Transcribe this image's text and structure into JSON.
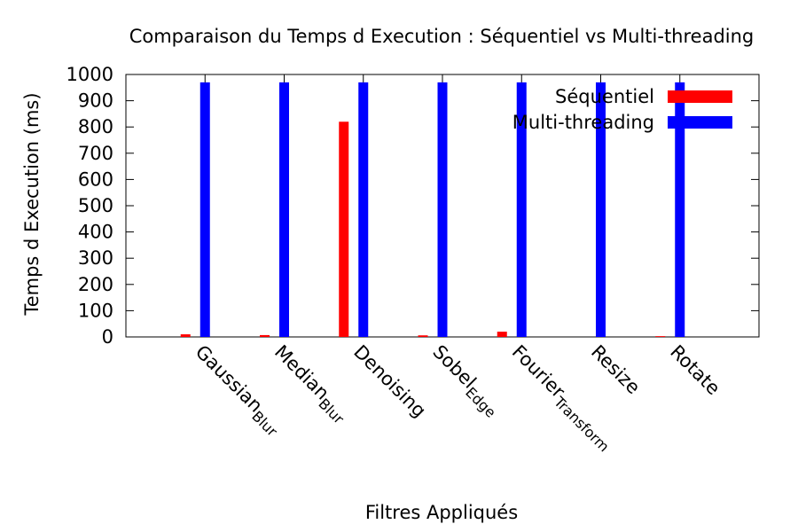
{
  "chart_data": {
    "type": "bar",
    "title": "Comparaison du Temps d Execution : Séquentiel vs Multi-threading",
    "xlabel": "Filtres Appliqués",
    "ylabel": "Temps d Execution (ms)",
    "ylim": [
      0,
      1000
    ],
    "yticks": [
      0,
      100,
      200,
      300,
      400,
      500,
      600,
      700,
      800,
      900,
      1000
    ],
    "categories": [
      "GaussianBlur",
      "MedianBlur",
      "Denoising",
      "SobelEdge",
      "FourierTransform",
      "Resize",
      "Rotate"
    ],
    "category_labels": [
      {
        "main": "Gaussian",
        "sub": "Blur"
      },
      {
        "main": "Median",
        "sub": "Blur"
      },
      {
        "main": "Denoising",
        "sub": ""
      },
      {
        "main": "Sobel",
        "sub": "Edge"
      },
      {
        "main": "Fourier",
        "sub": "Transform"
      },
      {
        "main": "Resize",
        "sub": ""
      },
      {
        "main": "Rotate",
        "sub": ""
      }
    ],
    "series": [
      {
        "name": "Séquentiel",
        "color": "#ff0000",
        "values": [
          10,
          7,
          820,
          6,
          20,
          0,
          3
        ]
      },
      {
        "name": "Multi-threading",
        "color": "#0000ff",
        "values": [
          970,
          970,
          970,
          970,
          970,
          970,
          970
        ]
      }
    ],
    "legend_position": "top-right",
    "grid": false
  }
}
